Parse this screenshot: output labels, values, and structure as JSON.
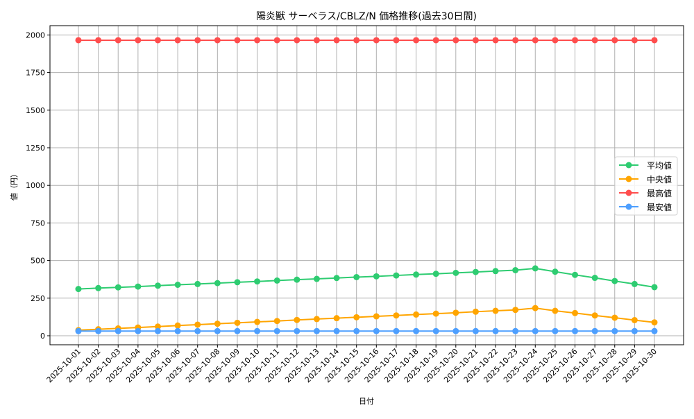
{
  "chart_data": {
    "type": "line",
    "title": "陽炎獣 サーベラス/CBLZ/N 価格推移(過去30日間)",
    "xlabel": "日付",
    "ylabel": "値（円）",
    "ylim": [
      -65,
      2060
    ],
    "yticks": [
      0,
      250,
      500,
      750,
      1000,
      1250,
      1500,
      1750,
      2000
    ],
    "grid": true,
    "legend_position": "center right",
    "x": [
      "2025-10-01",
      "2025-10-02",
      "2025-10-03",
      "2025-10-04",
      "2025-10-05",
      "2025-10-06",
      "2025-10-07",
      "2025-10-08",
      "2025-10-09",
      "2025-10-10",
      "2025-10-11",
      "2025-10-12",
      "2025-10-13",
      "2025-10-14",
      "2025-10-15",
      "2025-10-16",
      "2025-10-17",
      "2025-10-18",
      "2025-10-19",
      "2025-10-20",
      "2025-10-21",
      "2025-10-22",
      "2025-10-23",
      "2025-10-24",
      "2025-10-25",
      "2025-10-26",
      "2025-10-27",
      "2025-10-28",
      "2025-10-29",
      "2025-10-30"
    ],
    "series": [
      {
        "name": "平均値",
        "color": "#2ecc71",
        "values": [
          311,
          317,
          322,
          327,
          333,
          339,
          344,
          350,
          356,
          361,
          367,
          373,
          378,
          384,
          390,
          395,
          401,
          407,
          412,
          418,
          424,
          430,
          436,
          448,
          426,
          405,
          385,
          364,
          344,
          323
        ]
      },
      {
        "name": "中央値",
        "color": "#ffa500",
        "values": [
          37,
          43,
          49,
          55,
          61,
          68,
          74,
          80,
          86,
          92,
          98,
          105,
          111,
          117,
          123,
          129,
          135,
          141,
          147,
          153,
          160,
          166,
          172,
          184,
          166,
          151,
          135,
          120,
          104,
          89
        ]
      },
      {
        "name": "最高値",
        "color": "#ff4d4d",
        "values": [
          1965,
          1965,
          1965,
          1965,
          1965,
          1965,
          1965,
          1965,
          1965,
          1965,
          1965,
          1965,
          1965,
          1965,
          1965,
          1965,
          1965,
          1965,
          1965,
          1965,
          1965,
          1965,
          1965,
          1965,
          1965,
          1965,
          1965,
          1965,
          1965,
          1965
        ]
      },
      {
        "name": "最安値",
        "color": "#4d9fff",
        "values": [
          31,
          31,
          31,
          31,
          31,
          31,
          31,
          31,
          31,
          31,
          31,
          31,
          31,
          31,
          31,
          31,
          31,
          31,
          31,
          31,
          31,
          31,
          31,
          31,
          31,
          31,
          31,
          31,
          31,
          31
        ]
      }
    ]
  }
}
